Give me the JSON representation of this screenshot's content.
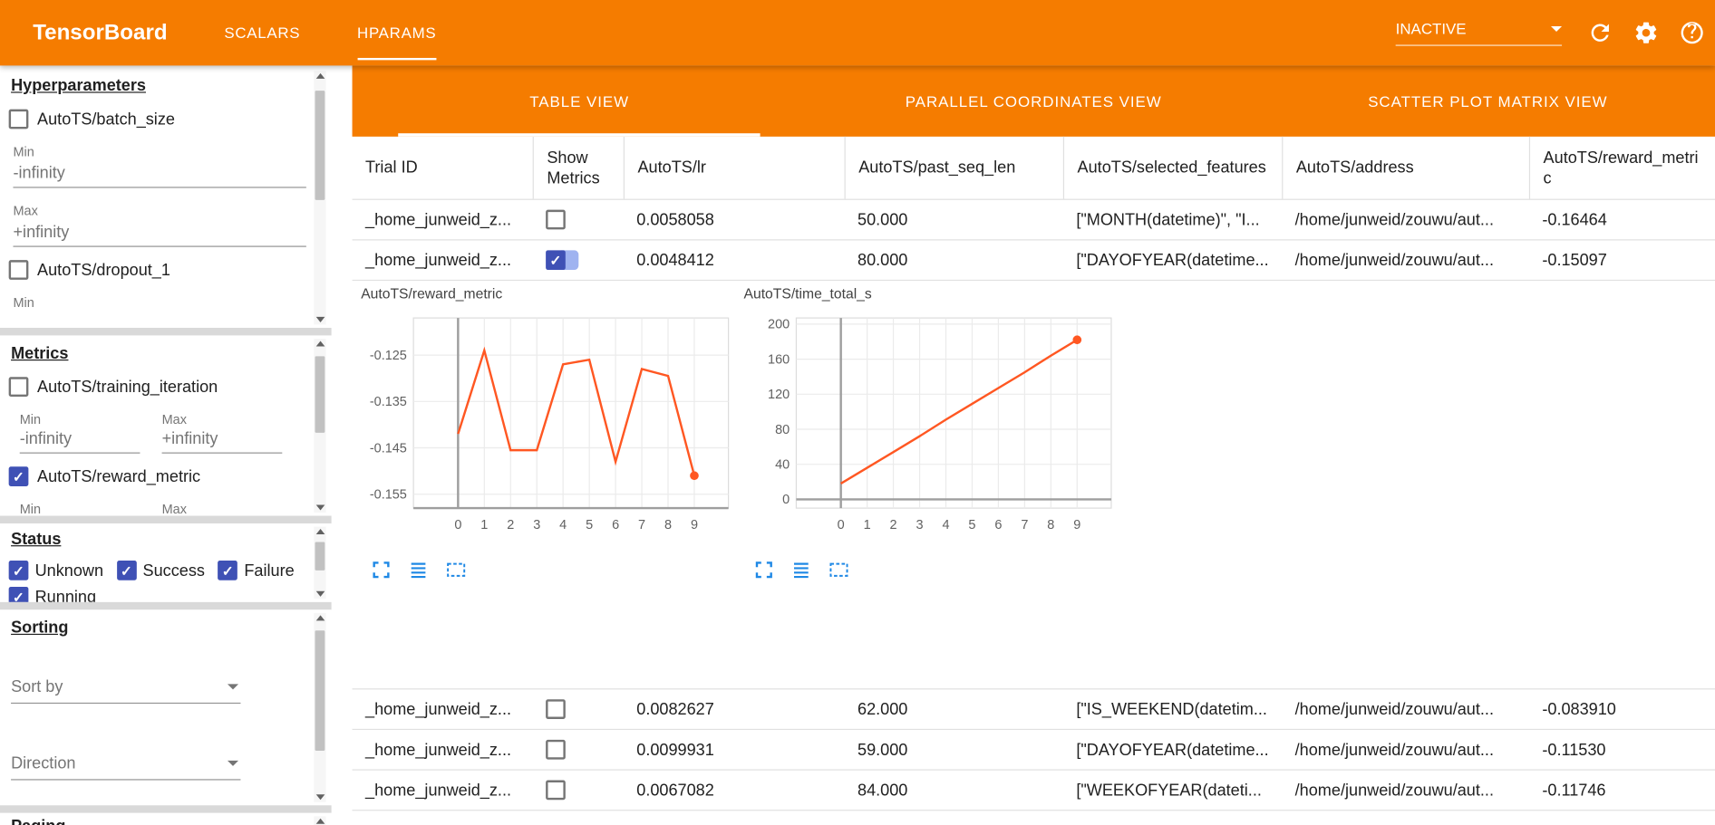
{
  "colors": {
    "toolbar_orange": "#f57c00",
    "accent_blue": "#3f51b5",
    "chart_line_orange": "#ff5722",
    "icon_blue": "#1e88e5"
  },
  "topbar": {
    "title": "TensorBoard",
    "nav_tabs": [
      {
        "label": "SCALARS",
        "active": false
      },
      {
        "label": "HPARAMS",
        "active": true
      }
    ],
    "run_selector_value": "INACTIVE"
  },
  "sidebar": {
    "hyperparameters": {
      "heading": "Hyperparameters",
      "params": [
        {
          "label": "AutoTS/batch_size",
          "checked": false,
          "min_label": "Min",
          "min_value": "-infinity",
          "max_label": "Max",
          "max_value": "+infinity"
        },
        {
          "label": "AutoTS/dropout_1",
          "checked": false,
          "min_label": "Min"
        }
      ]
    },
    "metrics": {
      "heading": "Metrics",
      "items": [
        {
          "label": "AutoTS/training_iteration",
          "checked": false,
          "min_label": "Min",
          "max_label": "Max",
          "min_value": "-infinity",
          "max_value": "+infinity"
        },
        {
          "label": "AutoTS/reward_metric",
          "checked": true,
          "min_label": "Min",
          "max_label": "Max"
        }
      ]
    },
    "status": {
      "heading": "Status",
      "options": [
        {
          "label": "Unknown",
          "checked": true
        },
        {
          "label": "Success",
          "checked": true
        },
        {
          "label": "Failure",
          "checked": true
        },
        {
          "label": "Running",
          "checked": true
        }
      ]
    },
    "sorting": {
      "heading": "Sorting",
      "sort_by_placeholder": "Sort by",
      "direction_placeholder": "Direction"
    },
    "paging": {
      "heading": "Paging"
    }
  },
  "main": {
    "view_tabs": [
      {
        "label": "TABLE VIEW",
        "active": true
      },
      {
        "label": "PARALLEL COORDINATES VIEW",
        "active": false
      },
      {
        "label": "SCATTER PLOT MATRIX VIEW",
        "active": false
      }
    ],
    "table": {
      "columns": [
        "Trial ID",
        "Show Metrics",
        "AutoTS/lr",
        "AutoTS/past_seq_len",
        "AutoTS/selected_features",
        "AutoTS/address",
        "AutoTS/reward_metric"
      ],
      "rows": [
        {
          "trial_id": "_home_junweid_z...",
          "show_metrics": false,
          "lr": "0.0058058",
          "past_seq_len": "50.000",
          "selected_features": "[\"MONTH(datetime)\", \"I...",
          "address": "/home/junweid/zouwu/aut...",
          "reward_metric": "-0.16464",
          "expanded": false
        },
        {
          "trial_id": "_home_junweid_z...",
          "show_metrics": true,
          "lr": "0.0048412",
          "past_seq_len": "80.000",
          "selected_features": "[\"DAYOFYEAR(datetime...",
          "address": "/home/junweid/zouwu/aut...",
          "reward_metric": "-0.15097",
          "expanded": true
        },
        {
          "trial_id": "_home_junweid_z...",
          "show_metrics": false,
          "lr": "0.0082627",
          "past_seq_len": "62.000",
          "selected_features": "[\"IS_WEEKEND(datetim...",
          "address": "/home/junweid/zouwu/aut...",
          "reward_metric": "-0.083910",
          "expanded": false
        },
        {
          "trial_id": "_home_junweid_z...",
          "show_metrics": false,
          "lr": "0.0099931",
          "past_seq_len": "59.000",
          "selected_features": "[\"DAYOFYEAR(datetime...",
          "address": "/home/junweid/zouwu/aut...",
          "reward_metric": "-0.11530",
          "expanded": false
        },
        {
          "trial_id": "_home_junweid_z...",
          "show_metrics": false,
          "lr": "0.0067082",
          "past_seq_len": "84.000",
          "selected_features": "[\"WEEKOFYEAR(dateti...",
          "address": "/home/junweid/zouwu/aut...",
          "reward_metric": "-0.11746",
          "expanded": false
        }
      ]
    }
  },
  "chart_data": [
    {
      "type": "line",
      "title": "AutoTS/reward_metric",
      "x": [
        0,
        1,
        2,
        3,
        4,
        5,
        6,
        7,
        8,
        9
      ],
      "values": [
        -0.142,
        -0.124,
        -0.1455,
        -0.1455,
        -0.127,
        -0.126,
        -0.148,
        -0.128,
        -0.1295,
        -0.151
      ],
      "xlabel": "",
      "ylabel": "",
      "xlim": [
        -1.7,
        10.3
      ],
      "ylim": [
        -0.158,
        -0.117
      ],
      "xticks": [
        0,
        1,
        2,
        3,
        4,
        5,
        6,
        7,
        8,
        9
      ],
      "yticks": [
        -0.125,
        -0.135,
        -0.145,
        -0.155
      ],
      "grid": true,
      "legend": false,
      "end_marker": true,
      "baseline_value": -0.158
    },
    {
      "type": "line",
      "title": "AutoTS/time_total_s",
      "x": [
        0,
        1,
        2,
        3,
        4,
        5,
        6,
        7,
        8,
        9
      ],
      "values": [
        18,
        36,
        54,
        72,
        91,
        109,
        127,
        145,
        164,
        182
      ],
      "xlabel": "",
      "ylabel": "",
      "xlim": [
        -1.7,
        10.3
      ],
      "ylim": [
        -10,
        207
      ],
      "xticks": [
        0,
        1,
        2,
        3,
        4,
        5,
        6,
        7,
        8,
        9
      ],
      "yticks": [
        0,
        40,
        80,
        120,
        160,
        200
      ],
      "grid": true,
      "legend": false,
      "end_marker": true,
      "baseline_value": 0
    }
  ]
}
